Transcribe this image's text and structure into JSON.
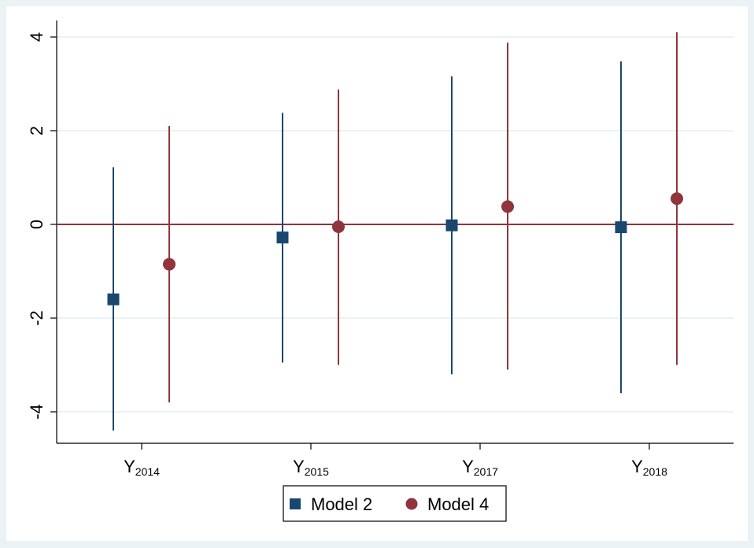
{
  "chart_data": {
    "type": "scatter",
    "subtype": "coefficient-plot",
    "title": "",
    "xlabel": "",
    "ylabel": "",
    "categories": [
      {
        "base": "Y",
        "sub": "2014"
      },
      {
        "base": "Y",
        "sub": "2015"
      },
      {
        "base": "Y",
        "sub": "2017"
      },
      {
        "base": "Y",
        "sub": "2018"
      }
    ],
    "ylim": [
      -4.4,
      4.3
    ],
    "yticks": [
      4,
      2,
      0,
      -2,
      -4
    ],
    "yticklabels": [
      "4",
      "2",
      "0",
      "-2",
      "-4"
    ],
    "reference_line": 0,
    "grid": true,
    "legend_position": "bottom",
    "series": [
      {
        "name": "Model 2",
        "marker": "square",
        "color": "#1a476f",
        "values": [
          -1.6,
          -0.28,
          -0.02,
          -0.06
        ],
        "ci_low": [
          -4.4,
          -2.95,
          -3.2,
          -3.6
        ],
        "ci_high": [
          1.22,
          2.38,
          3.16,
          3.48
        ]
      },
      {
        "name": "Model 4",
        "marker": "circle",
        "color": "#90353b",
        "values": [
          -0.85,
          -0.05,
          0.38,
          0.55
        ],
        "ci_low": [
          -3.8,
          -3.0,
          -3.1,
          -3.0
        ],
        "ci_high": [
          2.1,
          2.88,
          3.88,
          4.1
        ]
      }
    ],
    "colors": {
      "background": "#eaf2f3",
      "plot_background": "#ffffff",
      "grid": "#eaf2f3",
      "reference_line": "#90353b"
    }
  }
}
